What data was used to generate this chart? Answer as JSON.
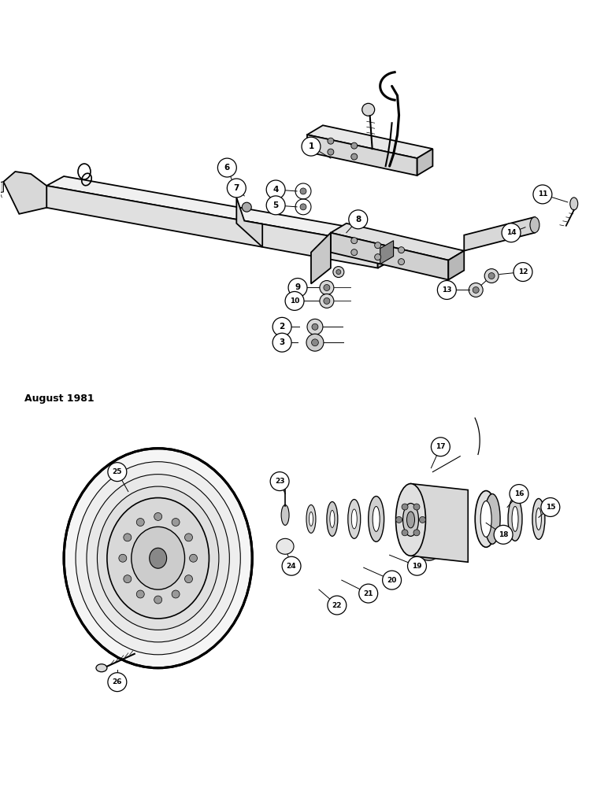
{
  "background_color": "#ffffff",
  "date_text": "August 1981",
  "text_color": "#000000",
  "font_size_date": 9
}
